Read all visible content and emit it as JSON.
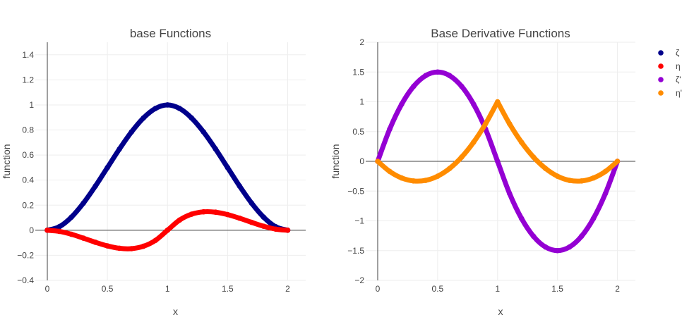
{
  "chart_data": [
    {
      "type": "scatter",
      "title": "base Functions",
      "xlabel": "x",
      "ylabel": "function",
      "xlim": [
        -0.1,
        2.15
      ],
      "ylim": [
        -0.4,
        1.5
      ],
      "xticks": [
        0,
        0.5,
        1,
        1.5,
        2
      ],
      "xtick_labels": [
        "0",
        "0.5",
        "1",
        "1.5",
        "2"
      ],
      "yticks": [
        -0.4,
        -0.2,
        0,
        0.2,
        0.4,
        0.6,
        0.8,
        1,
        1.2,
        1.4
      ],
      "ytick_labels": [
        "−0.4",
        "−0.2",
        "0",
        "0.2",
        "0.4",
        "0.6",
        "0.8",
        "1",
        "1.2",
        "1.4"
      ],
      "grid": true,
      "series": [
        {
          "name": "ζ",
          "color": "#00008b",
          "x": [
            0,
            0.1,
            0.2,
            0.3,
            0.4,
            0.5,
            0.6,
            0.7,
            0.8,
            0.9,
            1.0,
            1.1,
            1.2,
            1.3,
            1.4,
            1.5,
            1.6,
            1.7,
            1.8,
            1.9,
            2.0
          ],
          "y": [
            0,
            0.028,
            0.104,
            0.216,
            0.352,
            0.5,
            0.648,
            0.784,
            0.896,
            0.972,
            1.0,
            0.972,
            0.896,
            0.784,
            0.648,
            0.5,
            0.352,
            0.216,
            0.104,
            0.028,
            0
          ]
        },
        {
          "name": "η",
          "color": "#ff0000",
          "x": [
            0,
            0.1,
            0.2,
            0.3,
            0.4,
            0.5,
            0.6,
            0.7,
            0.8,
            0.9,
            1.0,
            1.1,
            1.2,
            1.3,
            1.4,
            1.5,
            1.6,
            1.7,
            1.8,
            1.9,
            2.0
          ],
          "y": [
            0,
            -0.009,
            -0.032,
            -0.063,
            -0.096,
            -0.125,
            -0.144,
            -0.147,
            -0.128,
            -0.081,
            0,
            0.081,
            0.128,
            0.147,
            0.144,
            0.125,
            0.096,
            0.063,
            0.032,
            0.009,
            0
          ]
        }
      ]
    },
    {
      "type": "scatter",
      "title": "Base Derivative Functions",
      "xlabel": "x",
      "ylabel": "function",
      "xlim": [
        -0.1,
        2.15
      ],
      "ylim": [
        -2,
        2
      ],
      "xticks": [
        0,
        0.5,
        1,
        1.5,
        2
      ],
      "xtick_labels": [
        "0",
        "0.5",
        "1",
        "1.5",
        "2"
      ],
      "yticks": [
        -2,
        -1.5,
        -1,
        -0.5,
        0,
        0.5,
        1,
        1.5,
        2
      ],
      "ytick_labels": [
        "−2",
        "−1.5",
        "−1",
        "−0.5",
        "0",
        "0.5",
        "1",
        "1.5",
        "2"
      ],
      "grid": true,
      "series": [
        {
          "name": "ζ'",
          "color": "#9400d3",
          "x": [
            0,
            0.1,
            0.2,
            0.3,
            0.4,
            0.5,
            0.6,
            0.7,
            0.8,
            0.9,
            1.0,
            1.1,
            1.2,
            1.3,
            1.4,
            1.5,
            1.6,
            1.7,
            1.8,
            1.9,
            2.0
          ],
          "y": [
            0,
            0.54,
            0.96,
            1.26,
            1.44,
            1.5,
            1.44,
            1.26,
            0.96,
            0.54,
            0,
            -0.54,
            -0.96,
            -1.26,
            -1.44,
            -1.5,
            -1.44,
            -1.26,
            -0.96,
            -0.54,
            0
          ]
        },
        {
          "name": "η'",
          "color": "#ff8c00",
          "x": [
            0,
            0.1,
            0.2,
            0.3,
            0.4,
            0.5,
            0.6,
            0.7,
            0.8,
            0.9,
            1.0,
            1.1,
            1.2,
            1.3,
            1.4,
            1.5,
            1.6,
            1.7,
            1.8,
            1.9,
            2.0
          ],
          "y": [
            0,
            -0.17,
            -0.28,
            -0.33,
            -0.32,
            -0.25,
            -0.12,
            0.07,
            0.32,
            0.63,
            1.0,
            0.63,
            0.32,
            0.07,
            -0.12,
            -0.25,
            -0.32,
            -0.33,
            -0.28,
            -0.17,
            0
          ]
        }
      ]
    }
  ],
  "legend": {
    "placement": "top-right",
    "items": [
      {
        "label": "ζ",
        "color": "#00008b"
      },
      {
        "label": "η",
        "color": "#ff0000"
      },
      {
        "label": "ζ'",
        "color": "#9400d3"
      },
      {
        "label": "η'",
        "color": "#ff8c00"
      }
    ]
  }
}
